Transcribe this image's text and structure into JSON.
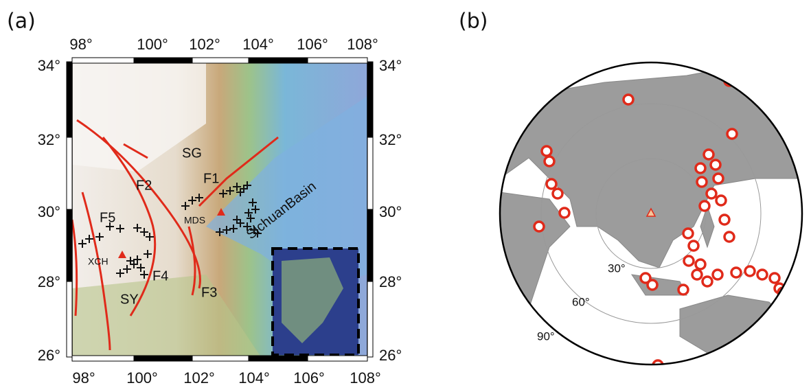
{
  "panel_a": {
    "label": "(a)",
    "lon_labels_top": [
      "98°",
      "100°",
      "102°",
      "104°",
      "106°",
      "108°"
    ],
    "lon_labels_bottom": [
      "98°",
      "100°",
      "102°",
      "104°",
      "106°",
      "108°"
    ],
    "lat_labels_left": [
      "34°",
      "32°",
      "30°",
      "28°",
      "26°"
    ],
    "lat_labels_right": [
      "34°",
      "32°",
      "30°",
      "28°",
      "26°"
    ],
    "map_labels": [
      "SG",
      "F1",
      "F2",
      "F3",
      "F4",
      "F5",
      "SY",
      "XCH",
      "MDS",
      "SichuanBasin"
    ]
  },
  "panel_b": {
    "label": "(b)",
    "ring_labels": [
      "30°",
      "60°",
      "90°"
    ]
  }
}
